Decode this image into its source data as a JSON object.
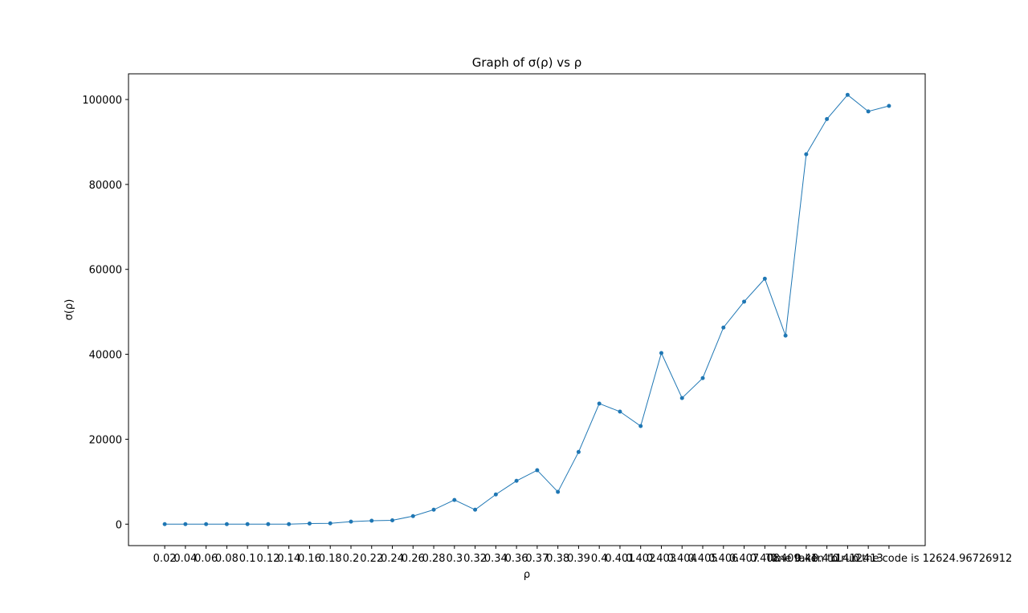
{
  "chart_data": {
    "type": "line",
    "title": "Graph of σ(ρ) vs ρ",
    "x_label": "ρ",
    "y_label": "σ(ρ)",
    "categories": [
      "0.02",
      "0.04",
      "0.06",
      "0.08",
      "0.1",
      "0.12",
      "0.14",
      "0.16",
      "0.18",
      "0.2",
      "0.22",
      "0.24",
      "0.26",
      "0.28",
      "0.3",
      "0.32",
      "0.34",
      "0.36",
      "0.37",
      "0.38",
      "0.39",
      "0.4",
      "0.401",
      "0.402",
      "0.403",
      "0.404",
      "0.405",
      "0.406",
      "0.407",
      "0.408",
      "0.409",
      "0.41",
      "0.411",
      "0.412",
      "0.413",
      "Time taken to run the code is 12624.96726912"
    ],
    "series": [
      {
        "name": "σ(ρ)",
        "color": "#1f77b4",
        "values": [
          0,
          0,
          0,
          0,
          0,
          0,
          0,
          150,
          200,
          600,
          800,
          900,
          1900,
          3400,
          5700,
          3400,
          7000,
          10200,
          12700,
          7600,
          17000,
          28400,
          26500,
          23100,
          40300,
          29700,
          34400,
          46300,
          52400,
          57800,
          44400,
          87100,
          95400,
          101100,
          97200,
          98500
        ]
      }
    ],
    "ylim": [
      -5050,
      106050
    ],
    "yticks": [
      0,
      20000,
      40000,
      60000,
      80000,
      100000
    ]
  }
}
